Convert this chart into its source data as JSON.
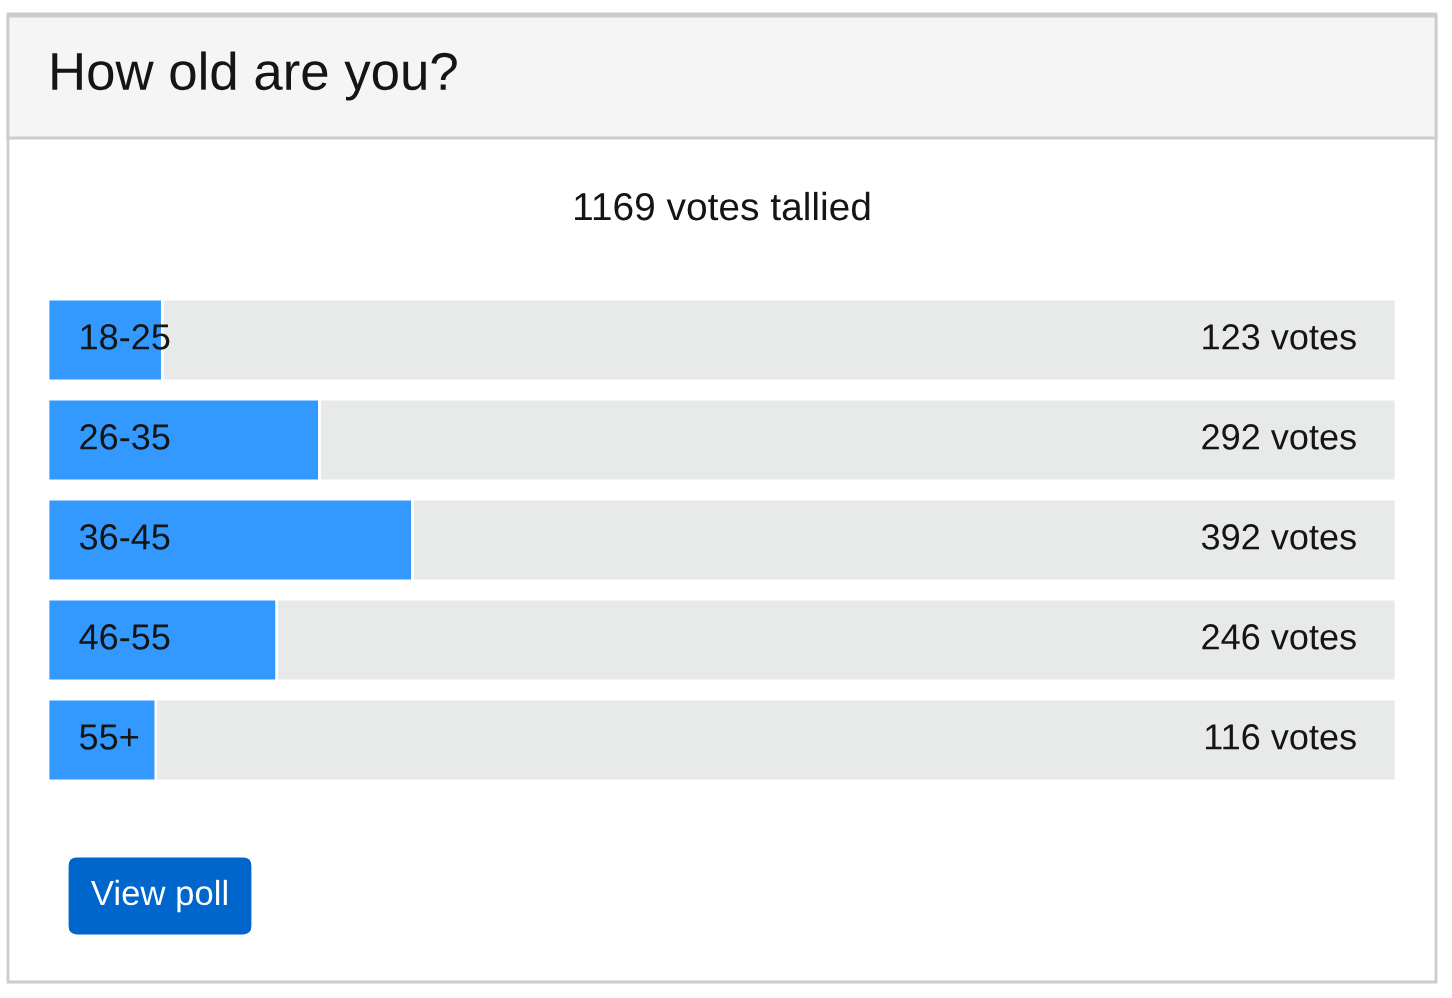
{
  "chart_data": {
    "type": "bar",
    "orientation": "horizontal",
    "title": "How old are you?",
    "subtitle": "1169 votes tallied",
    "categories": [
      "18-25",
      "26-35",
      "36-45",
      "46-55",
      "55+"
    ],
    "values": [
      123,
      292,
      392,
      246,
      116
    ],
    "value_labels": [
      "123 votes",
      "292 votes",
      "392 votes",
      "246 votes",
      "116 votes"
    ],
    "color": "#3399ff",
    "xlim": [
      0,
      1450
    ],
    "tick_labels": false,
    "annotations": [
      "View poll"
    ]
  }
}
